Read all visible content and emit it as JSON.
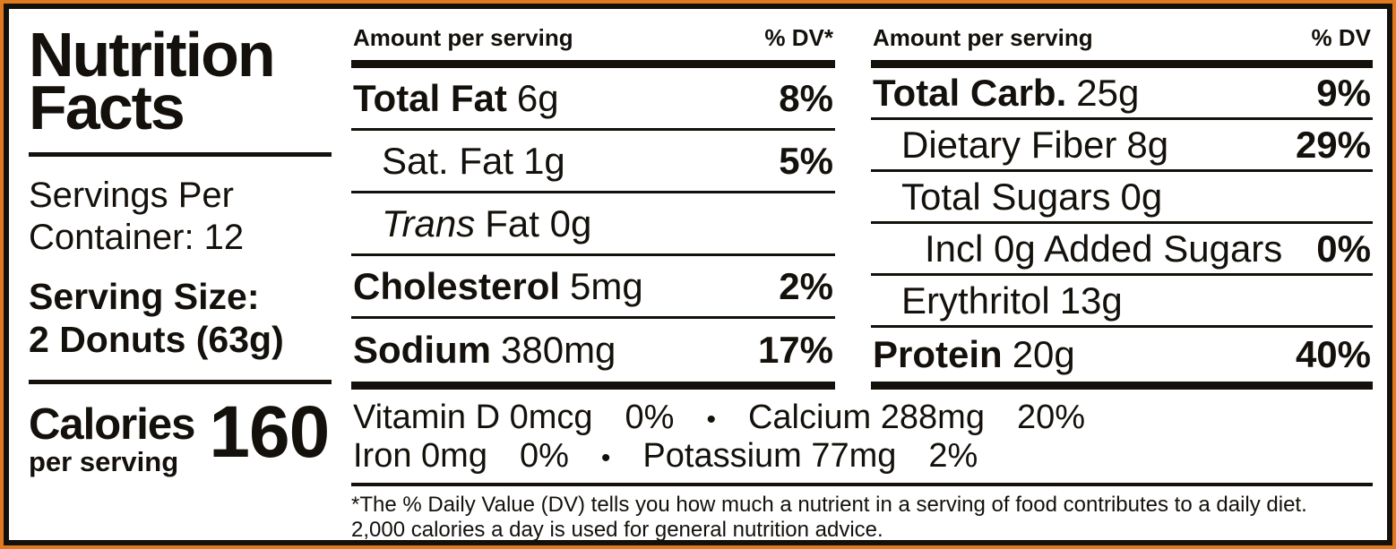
{
  "colors": {
    "frame_orange": "#e07a20",
    "ink_black": "#14110c",
    "background": "#ffffff"
  },
  "left_panel": {
    "title_line1": "Nutrition",
    "title_line2": "Facts",
    "servings_line1": "Servings Per",
    "servings_line2": "Container: 12",
    "serving_size_line1": "Serving Size:",
    "serving_size_line2": "2 Donuts (63g)",
    "calories_label": "Calories",
    "calories_sublabel": "per serving",
    "calories_value": "160"
  },
  "middle_column": {
    "header_label": "Amount per serving",
    "header_dv": "% DV*",
    "rows": [
      {
        "name": "Total Fat",
        "amount": "6g",
        "dv": "8%"
      },
      {
        "name": "Sat. Fat",
        "amount": "1g",
        "dv": "5%"
      },
      {
        "name": "Trans",
        "amount": "Fat 0g",
        "dv": ""
      },
      {
        "name": "Cholesterol",
        "amount": "5mg",
        "dv": "2%"
      },
      {
        "name": "Sodium",
        "amount": "380mg",
        "dv": "17%"
      }
    ]
  },
  "right_column": {
    "header_label": "Amount per serving",
    "header_dv": "% DV",
    "rows": [
      {
        "name": "Total Carb.",
        "amount": "25g",
        "dv": "9%"
      },
      {
        "name": "Dietary Fiber",
        "amount": "8g",
        "dv": "29%"
      },
      {
        "name": "Total Sugars",
        "amount": "0g",
        "dv": ""
      },
      {
        "name": "Incl 0g Added Sugars",
        "amount": "",
        "dv": "0%"
      },
      {
        "name": "Erythritol",
        "amount": "13g",
        "dv": ""
      },
      {
        "name": "Protein",
        "amount": "20g",
        "dv": "40%"
      }
    ]
  },
  "micronutrients": {
    "separator": "•",
    "line1": [
      {
        "label": "Vitamin D 0mcg",
        "dv": "0%"
      },
      {
        "label": "Calcium 288mg",
        "dv": "20%"
      }
    ],
    "line2": [
      {
        "label": "Iron 0mg",
        "dv": "0%"
      },
      {
        "label": "Potassium 77mg",
        "dv": "2%"
      }
    ]
  },
  "footnote": {
    "line1": "*The % Daily Value (DV) tells you how much a nutrient in a serving of food contributes to a daily diet.",
    "line2": "2,000 calories a day is used for general nutrition advice."
  }
}
